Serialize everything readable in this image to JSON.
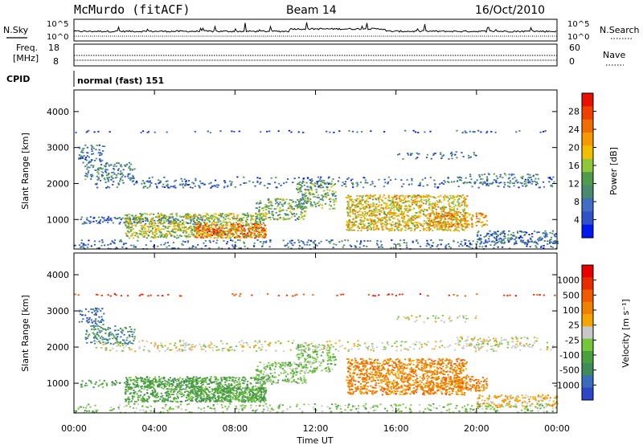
{
  "header": {
    "station": "McMurdo (fitACF)",
    "beam": "Beam 14",
    "date": "16/Oct/2010"
  },
  "panels": {
    "nsky_label": "N.Sky",
    "nsearch_label": "N.Search",
    "noise_top_tick": "10^5",
    "noise_bottom_tick": "10^0",
    "freq_label_line1": "Freq.",
    "freq_label_line2": "[MHz]",
    "freq_ticks": [
      "18",
      "8"
    ],
    "nave_label": "Nave",
    "nave_ticks": [
      "60",
      "0"
    ],
    "cpid_label": "CPID",
    "cpid_value": "normal (fast) 151"
  },
  "colors": {
    "power_scale": [
      "#0018f0",
      "#2f52c7",
      "#3f6ec2",
      "#4a8a6e",
      "#4f9b4e",
      "#8fc63a",
      "#f0c000",
      "#f59a00",
      "#f06e00",
      "#f04000",
      "#e81000"
    ],
    "velocity_scale": [
      "#2d46c6",
      "#3a6bbd",
      "#3f8b5a",
      "#4aa03f",
      "#74c63a",
      "#c8c8c8",
      "#f5a500",
      "#f08000",
      "#f05a00",
      "#e82b00",
      "#e80000"
    ],
    "ground_scatter": "#bebebe"
  },
  "chart_data": [
    {
      "type": "heatmap",
      "quantity": "Power",
      "ylabel": "Slant Range [km]",
      "ylim": [
        180,
        4600
      ],
      "yticks": [
        "4000",
        "3000",
        "2000",
        "1000"
      ],
      "xlim": [
        "00:00",
        "24:00"
      ],
      "colorbar_label": "Power [dB]",
      "colorbar_ticks": [
        "28",
        "24",
        "20",
        "16",
        "12",
        "8",
        "4"
      ],
      "grid": false
    },
    {
      "type": "heatmap",
      "quantity": "Velocity",
      "ylabel": "Slant Range [km]",
      "ylim": [
        180,
        4600
      ],
      "yticks": [
        "4000",
        "3000",
        "2000",
        "1000"
      ],
      "xlim": [
        "00:00",
        "24:00"
      ],
      "colorbar_label": "Velocity [m s⁻¹]",
      "colorbar_ticks": [
        "1000",
        "500",
        "100",
        "25",
        "-25",
        "-100",
        "-500",
        "-1000"
      ],
      "grid": false
    }
  ],
  "xaxis": {
    "ticks": [
      "00:00",
      "04:00",
      "08:00",
      "12:00",
      "16:00",
      "20:00",
      "00:00"
    ],
    "label": "Time UT"
  }
}
